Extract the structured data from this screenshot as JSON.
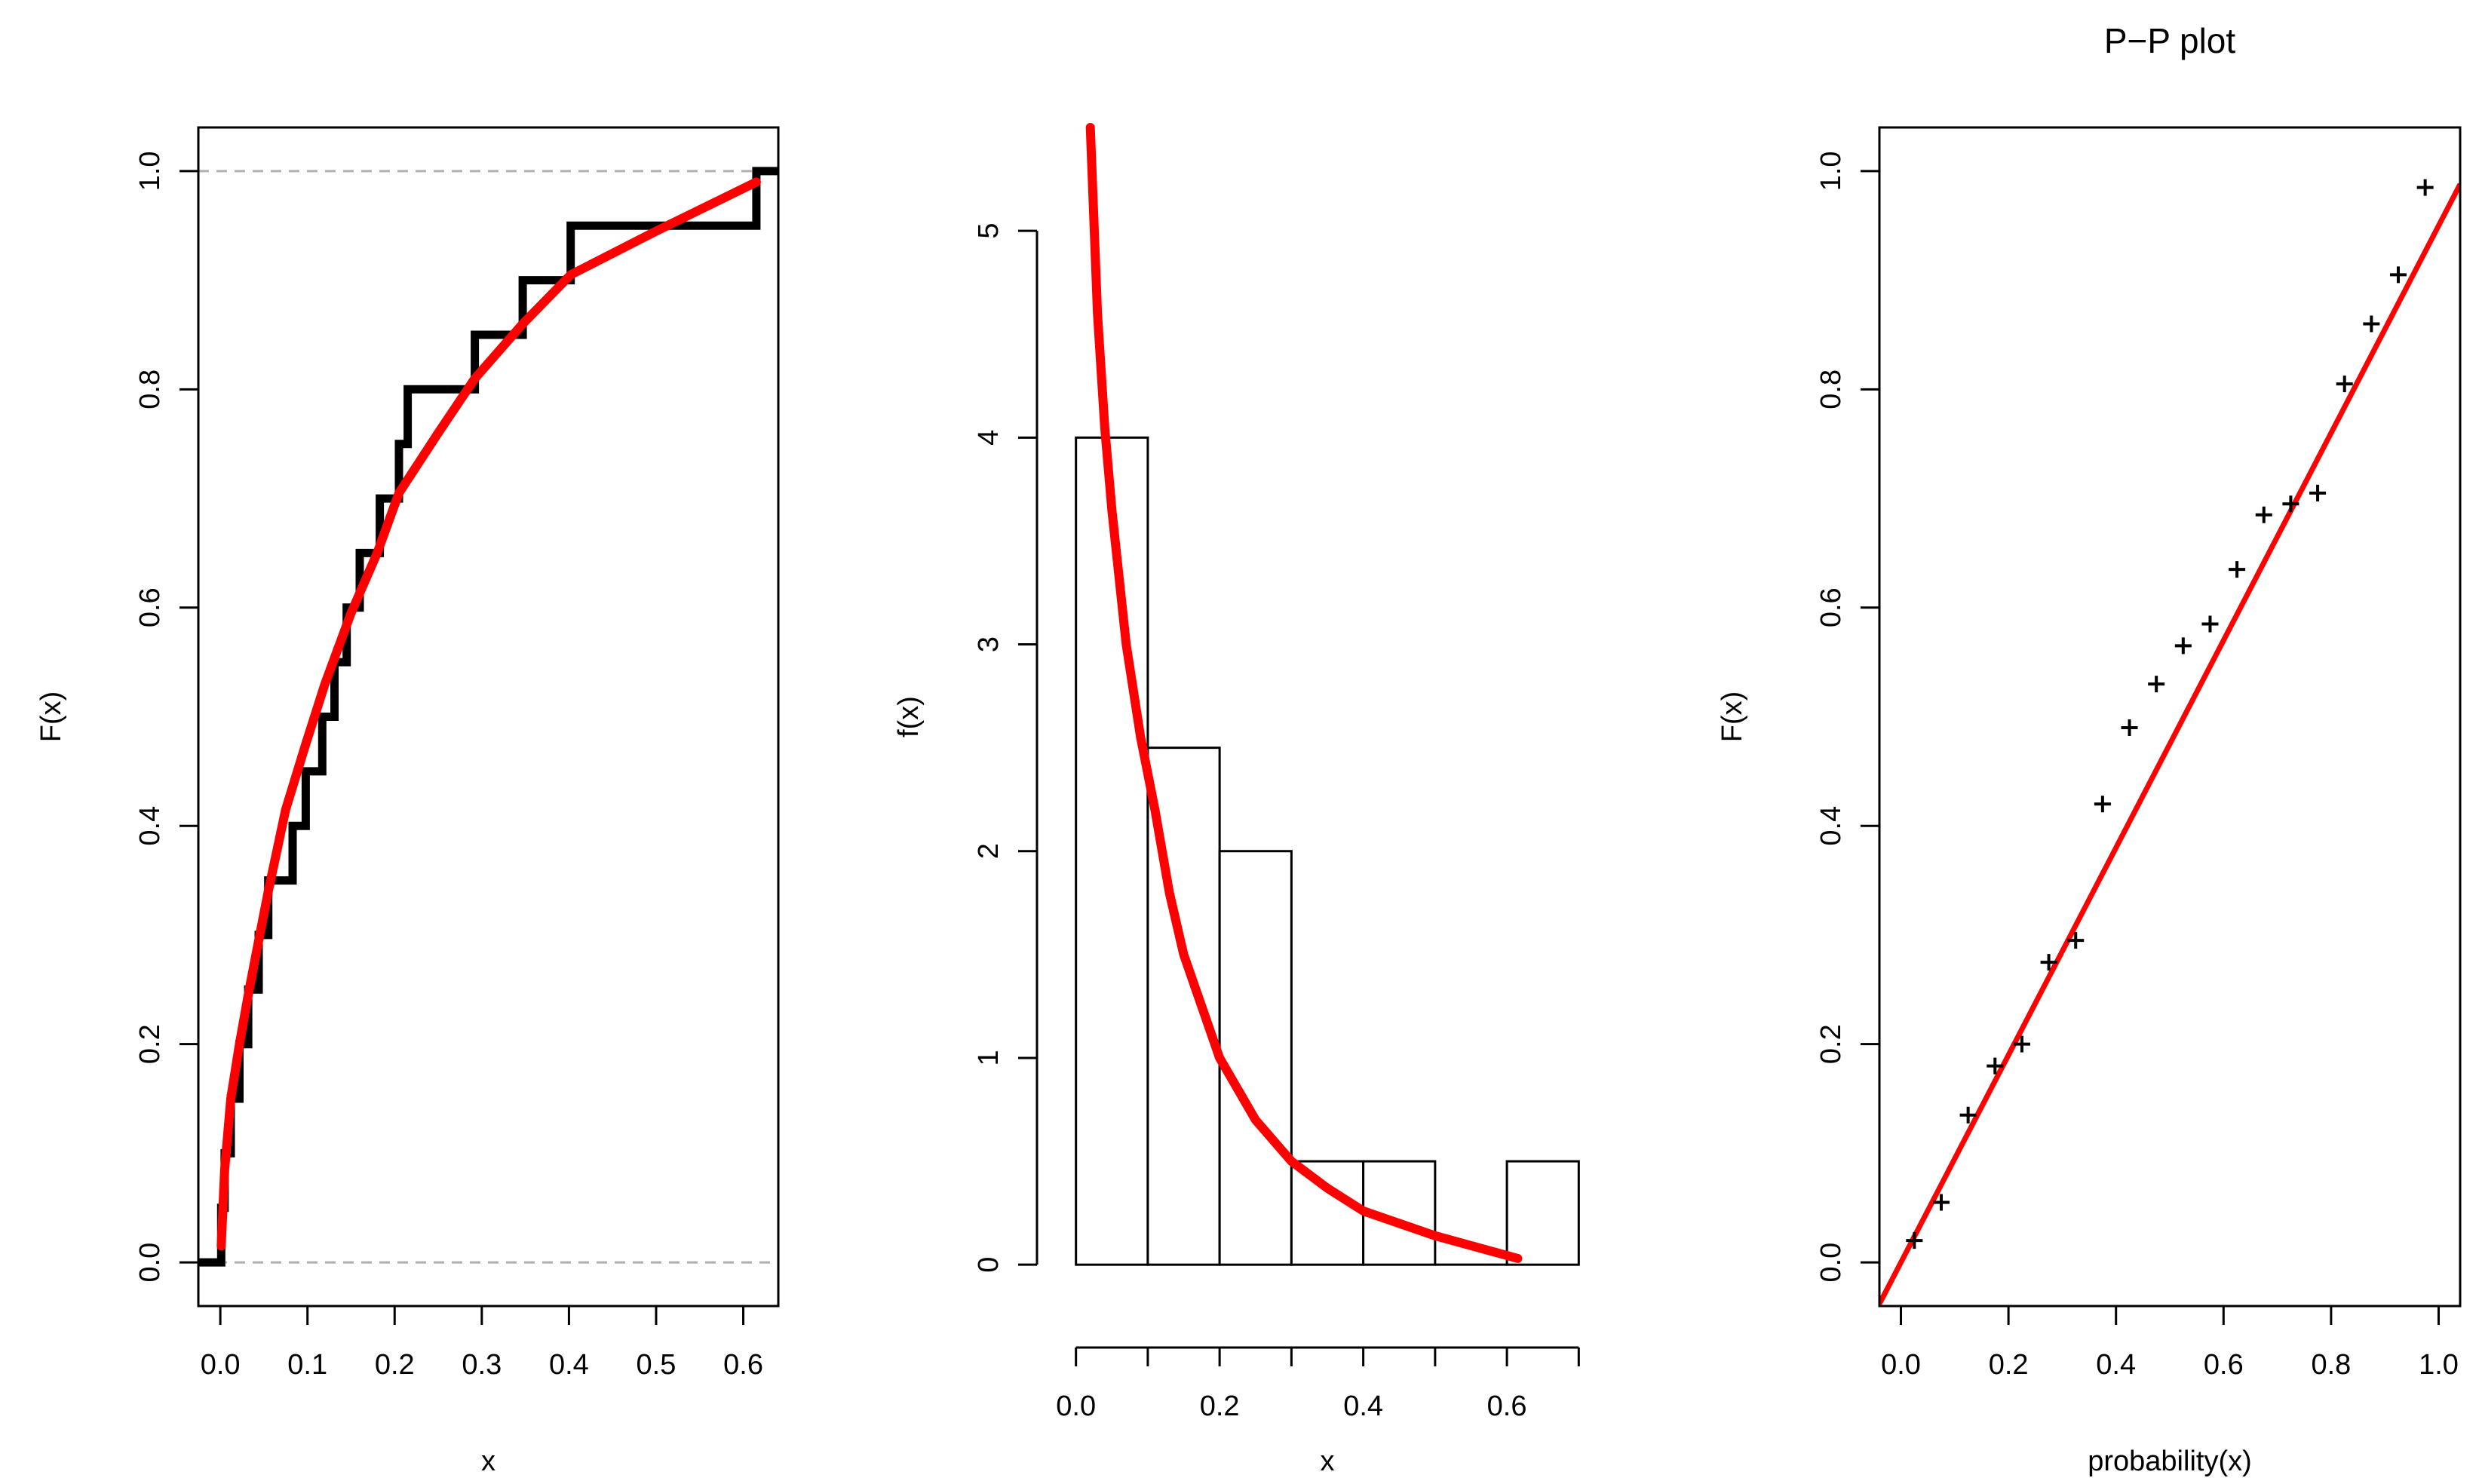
{
  "chart_data": [
    {
      "type": "step",
      "title": "",
      "xlabel": "x",
      "ylabel": "F(x)",
      "xlim": [
        -0.0252,
        0.6402
      ],
      "ylim": [
        -0.04,
        1.04
      ],
      "xticks": [
        0.0,
        0.1,
        0.2,
        0.3,
        0.4,
        0.5,
        0.6
      ],
      "xtick_labels": [
        "0.0",
        "0.1",
        "0.2",
        "0.3",
        "0.4",
        "0.5",
        "0.6"
      ],
      "yticks": [
        0.0,
        0.2,
        0.4,
        0.6,
        0.8,
        1.0
      ],
      "ytick_labels": [
        "0.0",
        "0.2",
        "0.4",
        "0.6",
        "0.8",
        "1.0"
      ],
      "reference_lines": [
        0,
        1
      ],
      "ecdf_x": [
        0.001,
        0.005,
        0.012,
        0.022,
        0.032,
        0.044,
        0.055,
        0.083,
        0.098,
        0.117,
        0.131,
        0.145,
        0.16,
        0.183,
        0.205,
        0.215,
        0.292,
        0.347,
        0.402,
        0.615
      ],
      "ecdf_y": [
        0.05,
        0.1,
        0.15,
        0.2,
        0.25,
        0.3,
        0.35,
        0.4,
        0.45,
        0.5,
        0.55,
        0.6,
        0.65,
        0.7,
        0.75,
        0.8,
        0.85,
        0.9,
        0.95,
        1.0
      ],
      "ecdf_xmin": -0.025,
      "ecdf_xmax": 0.64,
      "fit_curve": {
        "x": [
          0.001,
          0.005,
          0.012,
          0.022,
          0.032,
          0.044,
          0.055,
          0.075,
          0.098,
          0.12,
          0.15,
          0.18,
          0.205,
          0.25,
          0.292,
          0.347,
          0.402,
          0.5,
          0.615
        ],
        "y": [
          0.015,
          0.085,
          0.15,
          0.2,
          0.245,
          0.295,
          0.34,
          0.415,
          0.475,
          0.53,
          0.595,
          0.65,
          0.705,
          0.76,
          0.81,
          0.86,
          0.905,
          0.945,
          0.99
        ]
      }
    },
    {
      "type": "histogram",
      "title": "",
      "xlabel": "x",
      "ylabel": "f(x)",
      "xlim": [
        -0.028,
        0.728
      ],
      "ylim": [
        -0.2,
        5.5
      ],
      "xticks": [
        0.0,
        0.2,
        0.4,
        0.6
      ],
      "xtick_labels": [
        "0.0",
        "0.2",
        "0.4",
        "0.6"
      ],
      "xtick_minor": [
        0.1,
        0.3,
        0.5,
        0.7
      ],
      "yticks": [
        0,
        1,
        2,
        3,
        4,
        5
      ],
      "ytick_labels": [
        "0",
        "1",
        "2",
        "3",
        "4",
        "5"
      ],
      "bins": [
        0.0,
        0.1,
        0.2,
        0.3,
        0.4,
        0.5,
        0.6,
        0.7
      ],
      "densities": [
        4.0,
        2.5,
        2.0,
        0.5,
        0.5,
        0.0,
        0.5
      ],
      "fit_curve": {
        "x": [
          0.02,
          0.03,
          0.04,
          0.05,
          0.07,
          0.09,
          0.11,
          0.13,
          0.15,
          0.2,
          0.25,
          0.3,
          0.35,
          0.4,
          0.5,
          0.615
        ],
        "y": [
          5.5,
          4.6,
          4.05,
          3.65,
          3.0,
          2.55,
          2.2,
          1.8,
          1.5,
          1.0,
          0.7,
          0.5,
          0.37,
          0.26,
          0.14,
          0.03
        ]
      }
    },
    {
      "type": "scatter",
      "title": "P−P plot",
      "xlabel": "probability(x)",
      "ylabel": "F(x)",
      "xlim": [
        -0.04,
        1.04
      ],
      "ylim": [
        -0.04,
        1.04
      ],
      "xticks": [
        0.0,
        0.2,
        0.4,
        0.6,
        0.8,
        1.0
      ],
      "xtick_labels": [
        "0.0",
        "0.2",
        "0.4",
        "0.6",
        "0.8",
        "1.0"
      ],
      "yticks": [
        0.0,
        0.2,
        0.4,
        0.6,
        0.8,
        1.0
      ],
      "ytick_labels": [
        "0.0",
        "0.2",
        "0.4",
        "0.6",
        "0.8",
        "1.0"
      ],
      "x": [
        0.025,
        0.075,
        0.125,
        0.175,
        0.225,
        0.275,
        0.325,
        0.375,
        0.425,
        0.475,
        0.525,
        0.575,
        0.625,
        0.675,
        0.725,
        0.775,
        0.825,
        0.875,
        0.925,
        0.975
      ],
      "y": [
        0.02,
        0.055,
        0.135,
        0.18,
        0.2,
        0.275,
        0.295,
        0.42,
        0.49,
        0.53,
        0.565,
        0.585,
        0.635,
        0.685,
        0.695,
        0.705,
        0.805,
        0.86,
        0.905,
        0.985
      ],
      "reference_line": {
        "intercept": 0.0,
        "slope": 0.95
      }
    }
  ],
  "colors": {
    "fit": "#ff0000",
    "data": "#000000",
    "reference": "#b0b0b0"
  }
}
